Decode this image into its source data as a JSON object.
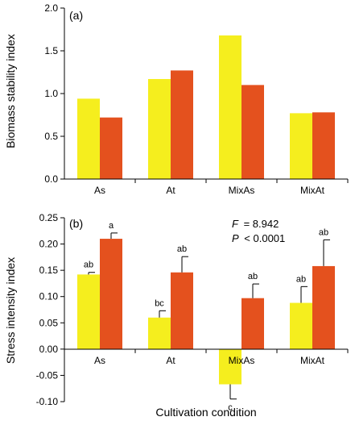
{
  "figure": {
    "xlabel": "Cultivation condition"
  },
  "colors": {
    "series1": "#f5ee1e",
    "series2": "#e4511e",
    "axis": "#000000"
  },
  "chart_data": [
    {
      "type": "bar",
      "panel_label": "(a)",
      "categories": [
        "As",
        "At",
        "MixAs",
        "MixAt"
      ],
      "ylabel": "Biomass stability index",
      "ylim": [
        0,
        2.0
      ],
      "yticks": [
        "0.0",
        "0.5",
        "1.0",
        "1.5",
        "2.0"
      ],
      "ytick_values": [
        0,
        0.5,
        1.0,
        1.5,
        2.0
      ],
      "series": [
        {
          "values": [
            0.94,
            1.17,
            1.68,
            0.77
          ],
          "color": "#f5ee1e"
        },
        {
          "values": [
            0.72,
            1.27,
            1.1,
            0.78
          ],
          "color": "#e4511e"
        }
      ]
    },
    {
      "type": "bar",
      "panel_label": "(b)",
      "categories": [
        "As",
        "At",
        "MixAs",
        "MixAt"
      ],
      "ylabel": "Stress intensity index",
      "ylim": [
        -0.1,
        0.25
      ],
      "yticks": [
        "-0.10",
        "-0.05",
        "0.00",
        "0.05",
        "0.10",
        "0.15",
        "0.20",
        "0.25"
      ],
      "ytick_values": [
        -0.1,
        -0.05,
        0.0,
        0.05,
        0.1,
        0.15,
        0.2,
        0.25
      ],
      "series": [
        {
          "values": [
            0.142,
            0.06,
            -0.067,
            0.088
          ],
          "errors": [
            0.004,
            0.013,
            0.028,
            0.031
          ],
          "labels": [
            "ab",
            "bc",
            "c",
            "ab"
          ],
          "color": "#f5ee1e"
        },
        {
          "values": [
            0.21,
            0.146,
            0.097,
            0.158
          ],
          "errors": [
            0.011,
            0.03,
            0.027,
            0.05
          ],
          "labels": [
            "a",
            "ab",
            "ab",
            "ab"
          ],
          "color": "#e4511e"
        }
      ],
      "annotation": {
        "f_label": "F",
        "f_value": "= 8.942",
        "p_label": "P",
        "p_value": "< 0.0001"
      }
    }
  ]
}
